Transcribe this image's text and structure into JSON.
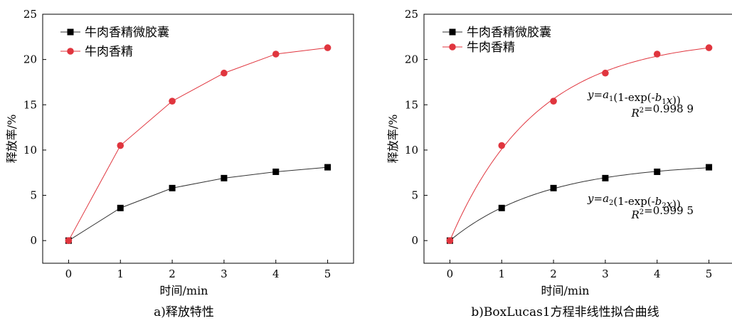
{
  "chart_data": [
    {
      "type": "line",
      "caption": "a)释放特性",
      "xlabel": "时间/min",
      "ylabel": "释放率/%",
      "xlim": [
        -0.5,
        5.5
      ],
      "ylim": [
        -2.5,
        25
      ],
      "xticks": [
        0,
        1,
        2,
        3,
        4,
        5
      ],
      "yticks": [
        0,
        5,
        10,
        15,
        20,
        25
      ],
      "grid": false,
      "legend_position": "top-left",
      "x": [
        0,
        1,
        2,
        3,
        4,
        5
      ],
      "series": [
        {
          "name": "牛肉香精微胶囊",
          "marker": "square",
          "color": "#000000",
          "line_color": "#333333",
          "values": [
            0,
            3.6,
            5.8,
            6.9,
            7.6,
            8.1
          ]
        },
        {
          "name": "牛肉香精",
          "marker": "circle",
          "color": "#e0353e",
          "line_color": "#e0353e",
          "values": [
            0,
            10.5,
            15.4,
            18.5,
            20.6,
            21.3
          ]
        }
      ]
    },
    {
      "type": "scatter",
      "caption": "b)BoxLucas1方程非线性拟合曲线",
      "xlabel": "时间/min",
      "ylabel": "释放率/%",
      "xlim": [
        -0.5,
        5.5
      ],
      "ylim": [
        -2.5,
        25
      ],
      "xticks": [
        0,
        1,
        2,
        3,
        4,
        5
      ],
      "yticks": [
        0,
        5,
        10,
        15,
        20,
        25
      ],
      "grid": false,
      "legend_position": "top-left",
      "x": [
        0,
        1,
        2,
        3,
        4,
        5
      ],
      "series": [
        {
          "name": "牛肉香精微胶囊",
          "marker": "square",
          "color": "#000000",
          "line_color": "#333333",
          "values": [
            0,
            3.6,
            5.8,
            6.9,
            7.6,
            8.1
          ],
          "fit": {
            "model": "y=a(1-exp(-bx))",
            "a": 8.6,
            "b": 0.55
          }
        },
        {
          "name": "牛肉香精",
          "marker": "circle",
          "color": "#e0353e",
          "line_color": "#e0353e",
          "values": [
            0,
            10.5,
            15.4,
            18.5,
            20.6,
            21.3
          ],
          "fit": {
            "model": "y=a(1-exp(-bx))",
            "a": 22.4,
            "b": 0.6
          }
        }
      ],
      "annotations": [
        {
          "parts": [
            {
              "t": "y",
              "i": true
            },
            {
              "t": "=",
              "i": false
            },
            {
              "t": "a",
              "i": true
            },
            {
              "t": "1",
              "sub": true
            },
            {
              "t": "(1-exp(-",
              "i": false
            },
            {
              "t": "b",
              "i": true
            },
            {
              "t": "1",
              "sub": true
            },
            {
              "t": "x",
              "i": true
            },
            {
              "t": "))",
              "i": false
            }
          ]
        },
        {
          "parts": [
            {
              "t": "R",
              "i": true
            },
            {
              "t": "2",
              "sup": true
            },
            {
              "t": "=0.998 9",
              "i": false
            }
          ]
        },
        {
          "parts": [
            {
              "t": "y",
              "i": true
            },
            {
              "t": "=",
              "i": false
            },
            {
              "t": "a",
              "i": true
            },
            {
              "t": "2",
              "sub": true
            },
            {
              "t": "(1-exp(-",
              "i": false
            },
            {
              "t": "b",
              "i": true
            },
            {
              "t": "2",
              "sub": true
            },
            {
              "t": "x",
              "i": true
            },
            {
              "t": "))",
              "i": false
            }
          ]
        },
        {
          "parts": [
            {
              "t": "R",
              "i": true
            },
            {
              "t": "2",
              "sup": true
            },
            {
              "t": "=0.999 5",
              "i": false
            }
          ]
        }
      ]
    }
  ]
}
